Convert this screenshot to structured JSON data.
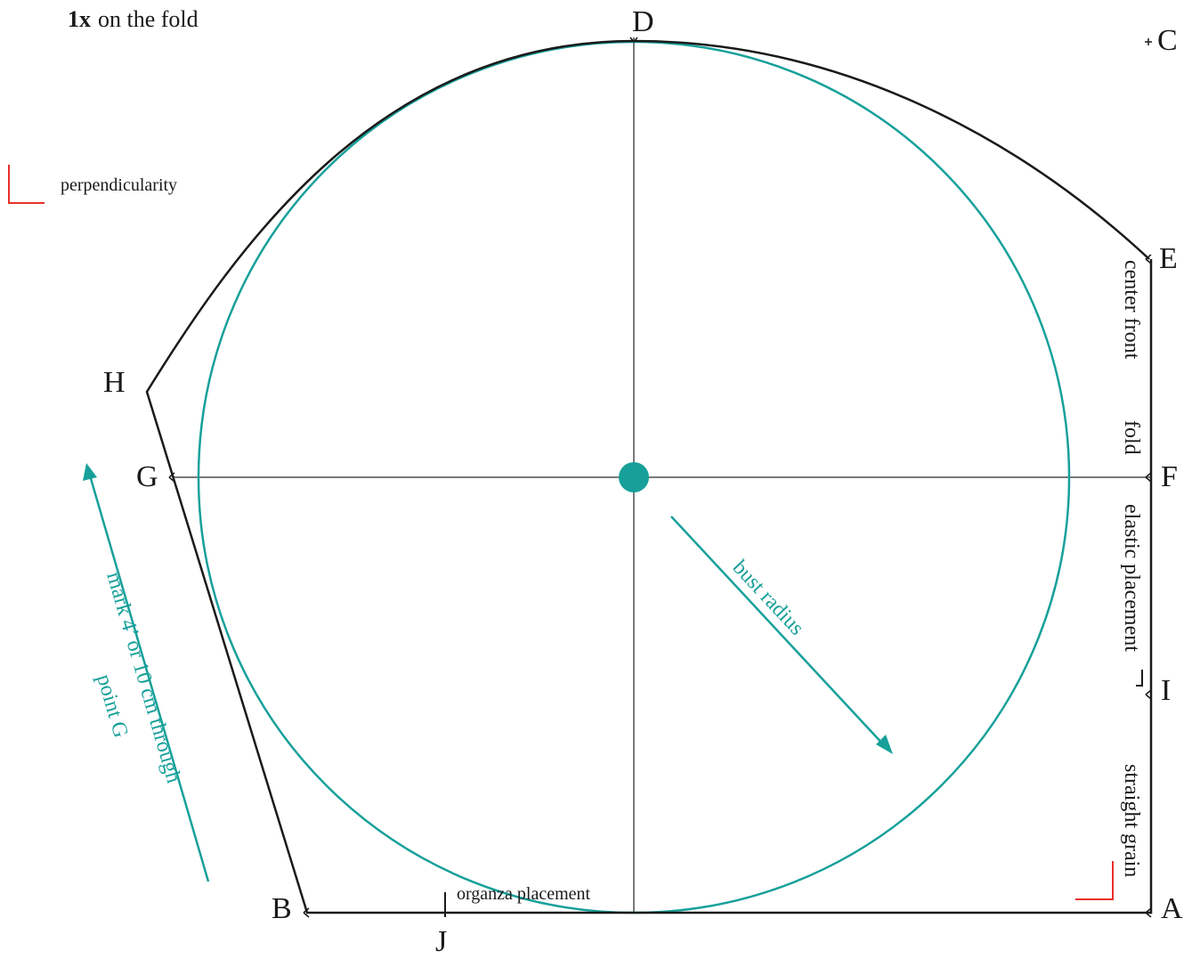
{
  "header": {
    "count": "1x",
    "placement": "on the fold"
  },
  "legend": {
    "perpendicularity": "perpendicularity"
  },
  "points": {
    "A": "A",
    "B": "B",
    "C": "C",
    "D": "D",
    "E": "E",
    "F": "F",
    "G": "G",
    "H": "H",
    "I": "I",
    "J": "J"
  },
  "annotations": {
    "center_front": "center front",
    "fold": "fold",
    "elastic_placement": "elastic placement",
    "straight_grain": "straight grain",
    "organza_placement": "organza placement",
    "bust_radius": "bust radius",
    "mark_line1": "mark 4’ or 10 cm through",
    "mark_line2": "point G"
  },
  "colors": {
    "outline": "#1a1a1a",
    "guide": "#7a7a7a",
    "teal": "#17a09a",
    "red": "#e8312a"
  }
}
